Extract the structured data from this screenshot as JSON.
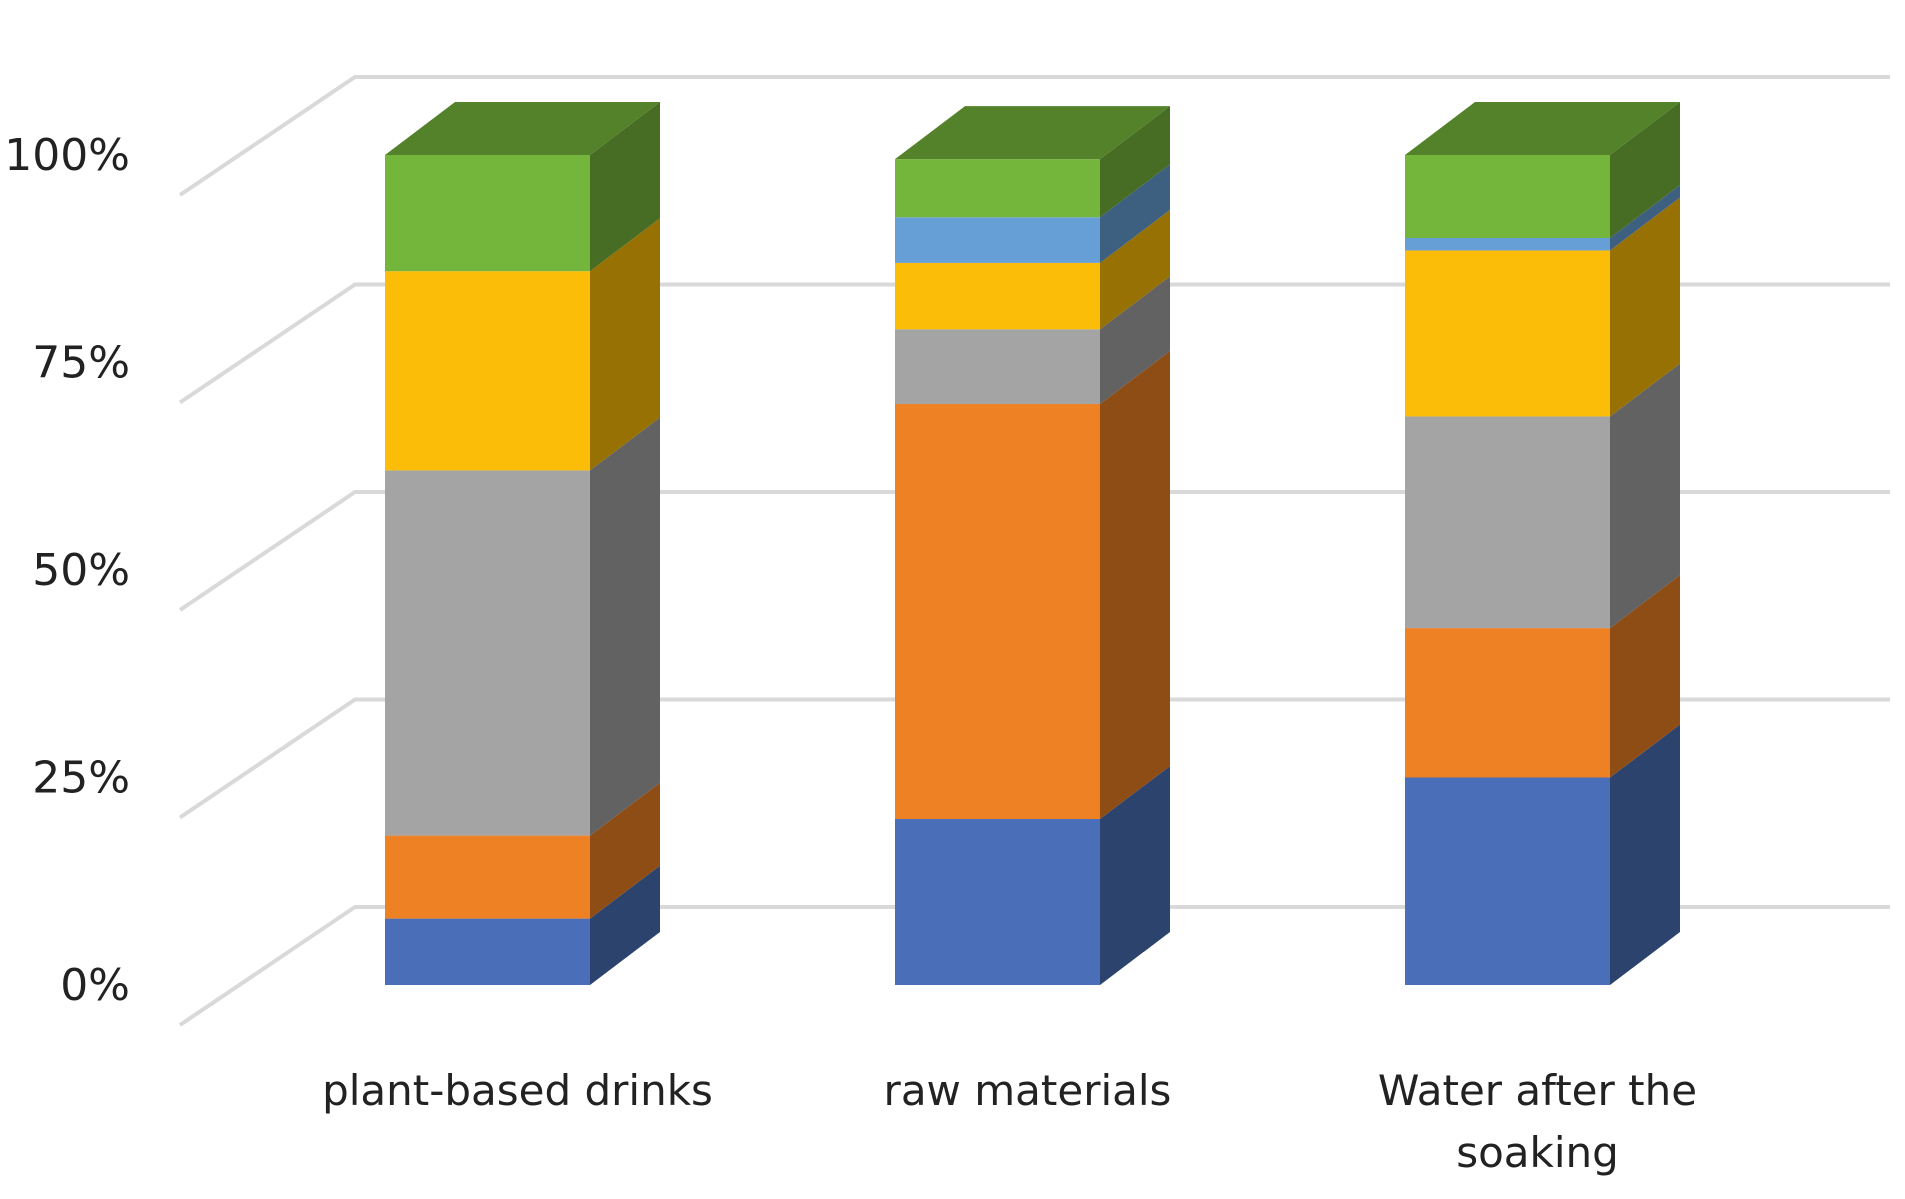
{
  "chart_data": {
    "type": "bar",
    "subtype": "stacked-100-percent-3d",
    "categories": [
      "plant-based drinks",
      "raw materials",
      "Water after the soaking"
    ],
    "category_lines": [
      [
        "plant-based drinks"
      ],
      [
        "raw materials"
      ],
      [
        "Water after the",
        "soaking"
      ]
    ],
    "y_ticks": [
      "0%",
      "25%",
      "50%",
      "75%",
      "100%"
    ],
    "ylim": [
      0,
      100
    ],
    "grid": true,
    "legend": "none",
    "series": [
      {
        "color": "#4a6fb8",
        "values": [
          8,
          20,
          25
        ]
      },
      {
        "color": "#ef8125",
        "values": [
          10,
          50,
          18
        ]
      },
      {
        "color": "#a4a4a4",
        "values": [
          44,
          9,
          25.5
        ]
      },
      {
        "color": "#fbbd07",
        "values": [
          24,
          8,
          20
        ]
      },
      {
        "color": "#659fd6",
        "values": [
          0,
          5.5,
          1.5
        ]
      },
      {
        "color": "#74b53b",
        "values": [
          14,
          7,
          10
        ]
      }
    ]
  }
}
